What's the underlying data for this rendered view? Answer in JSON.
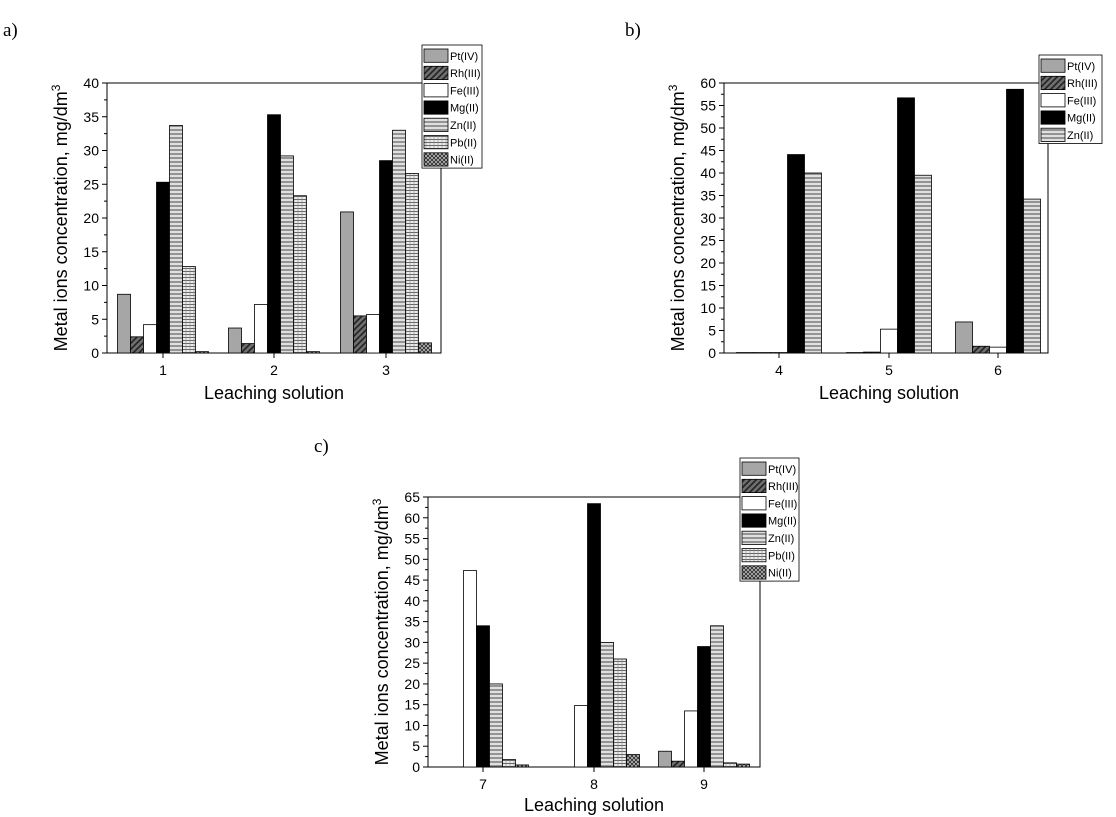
{
  "colors": {
    "Pt(IV)": "#a6a6a6",
    "Rh(III)": "#595959",
    "Fe(III)": "#ffffff",
    "Mg(II)": "#000000",
    "Zn(II)": "#c8c8c8",
    "Pb(II)": "#d9d9d9",
    "Ni(II)": "#9a9a9a"
  },
  "chart_data": [
    {
      "panel_letter": "a)",
      "type": "bar",
      "xlabel": "Leaching solution",
      "ylabel": "Metal ions concentration, mg/dm",
      "ylabel_superscript": "3",
      "ylim": [
        0,
        40
      ],
      "yticks": [
        0,
        5,
        10,
        15,
        20,
        25,
        30,
        35,
        40
      ],
      "legend_position": "top-right outside",
      "categories": [
        "1",
        "2",
        "3"
      ],
      "series": [
        {
          "name": "Pt(IV)",
          "values": [
            8.7,
            3.7,
            20.9
          ]
        },
        {
          "name": "Rh(III)",
          "values": [
            2.4,
            1.4,
            5.5
          ]
        },
        {
          "name": "Fe(III)",
          "values": [
            4.2,
            7.2,
            5.7
          ]
        },
        {
          "name": "Mg(II)",
          "values": [
            25.3,
            35.3,
            28.5
          ]
        },
        {
          "name": "Zn(II)",
          "values": [
            33.7,
            29.2,
            33.0
          ]
        },
        {
          "name": "Pb(II)",
          "values": [
            12.8,
            23.3,
            26.6
          ]
        },
        {
          "name": "Ni(II)",
          "values": [
            0.2,
            0.2,
            1.5
          ]
        }
      ]
    },
    {
      "panel_letter": "b)",
      "type": "bar",
      "xlabel": "Leaching solution",
      "ylabel": "Metal ions concentration, mg/dm",
      "ylabel_superscript": "3",
      "ylim": [
        0,
        60
      ],
      "yticks": [
        0,
        5,
        10,
        15,
        20,
        25,
        30,
        35,
        40,
        45,
        50,
        55,
        60
      ],
      "legend_position": "top-right outside",
      "categories": [
        "4",
        "5",
        "6"
      ],
      "series": [
        {
          "name": "Pt(IV)",
          "values": [
            0.1,
            0.1,
            6.9
          ]
        },
        {
          "name": "Rh(III)",
          "values": [
            0.1,
            0.2,
            1.5
          ]
        },
        {
          "name": "Fe(III)",
          "values": [
            0.1,
            5.3,
            1.3
          ]
        },
        {
          "name": "Mg(II)",
          "values": [
            44.1,
            56.7,
            58.6
          ]
        },
        {
          "name": "Zn(II)",
          "values": [
            40.0,
            39.5,
            34.2
          ]
        }
      ]
    },
    {
      "panel_letter": "c)",
      "type": "bar",
      "xlabel": "Leaching solution",
      "ylabel": "Metal ions concentration, mg/dm",
      "ylabel_superscript": "3",
      "ylim": [
        0,
        65
      ],
      "yticks": [
        0,
        5,
        10,
        15,
        20,
        25,
        30,
        35,
        40,
        45,
        50,
        55,
        60,
        65
      ],
      "legend_position": "top-right outside",
      "categories": [
        "7",
        "8",
        "9"
      ],
      "series": [
        {
          "name": "Pt(IV)",
          "values": [
            0,
            0,
            3.8
          ]
        },
        {
          "name": "Rh(III)",
          "values": [
            0,
            0,
            1.4
          ]
        },
        {
          "name": "Fe(III)",
          "values": [
            47.3,
            14.8,
            13.5
          ]
        },
        {
          "name": "Mg(II)",
          "values": [
            34.0,
            63.4,
            29.0
          ]
        },
        {
          "name": "Zn(II)",
          "values": [
            20.0,
            30.0,
            34.0
          ]
        },
        {
          "name": "Pb(II)",
          "values": [
            1.8,
            26.0,
            1.0
          ]
        },
        {
          "name": "Ni(II)",
          "values": [
            0.5,
            3.0,
            0.7
          ]
        }
      ]
    }
  ]
}
